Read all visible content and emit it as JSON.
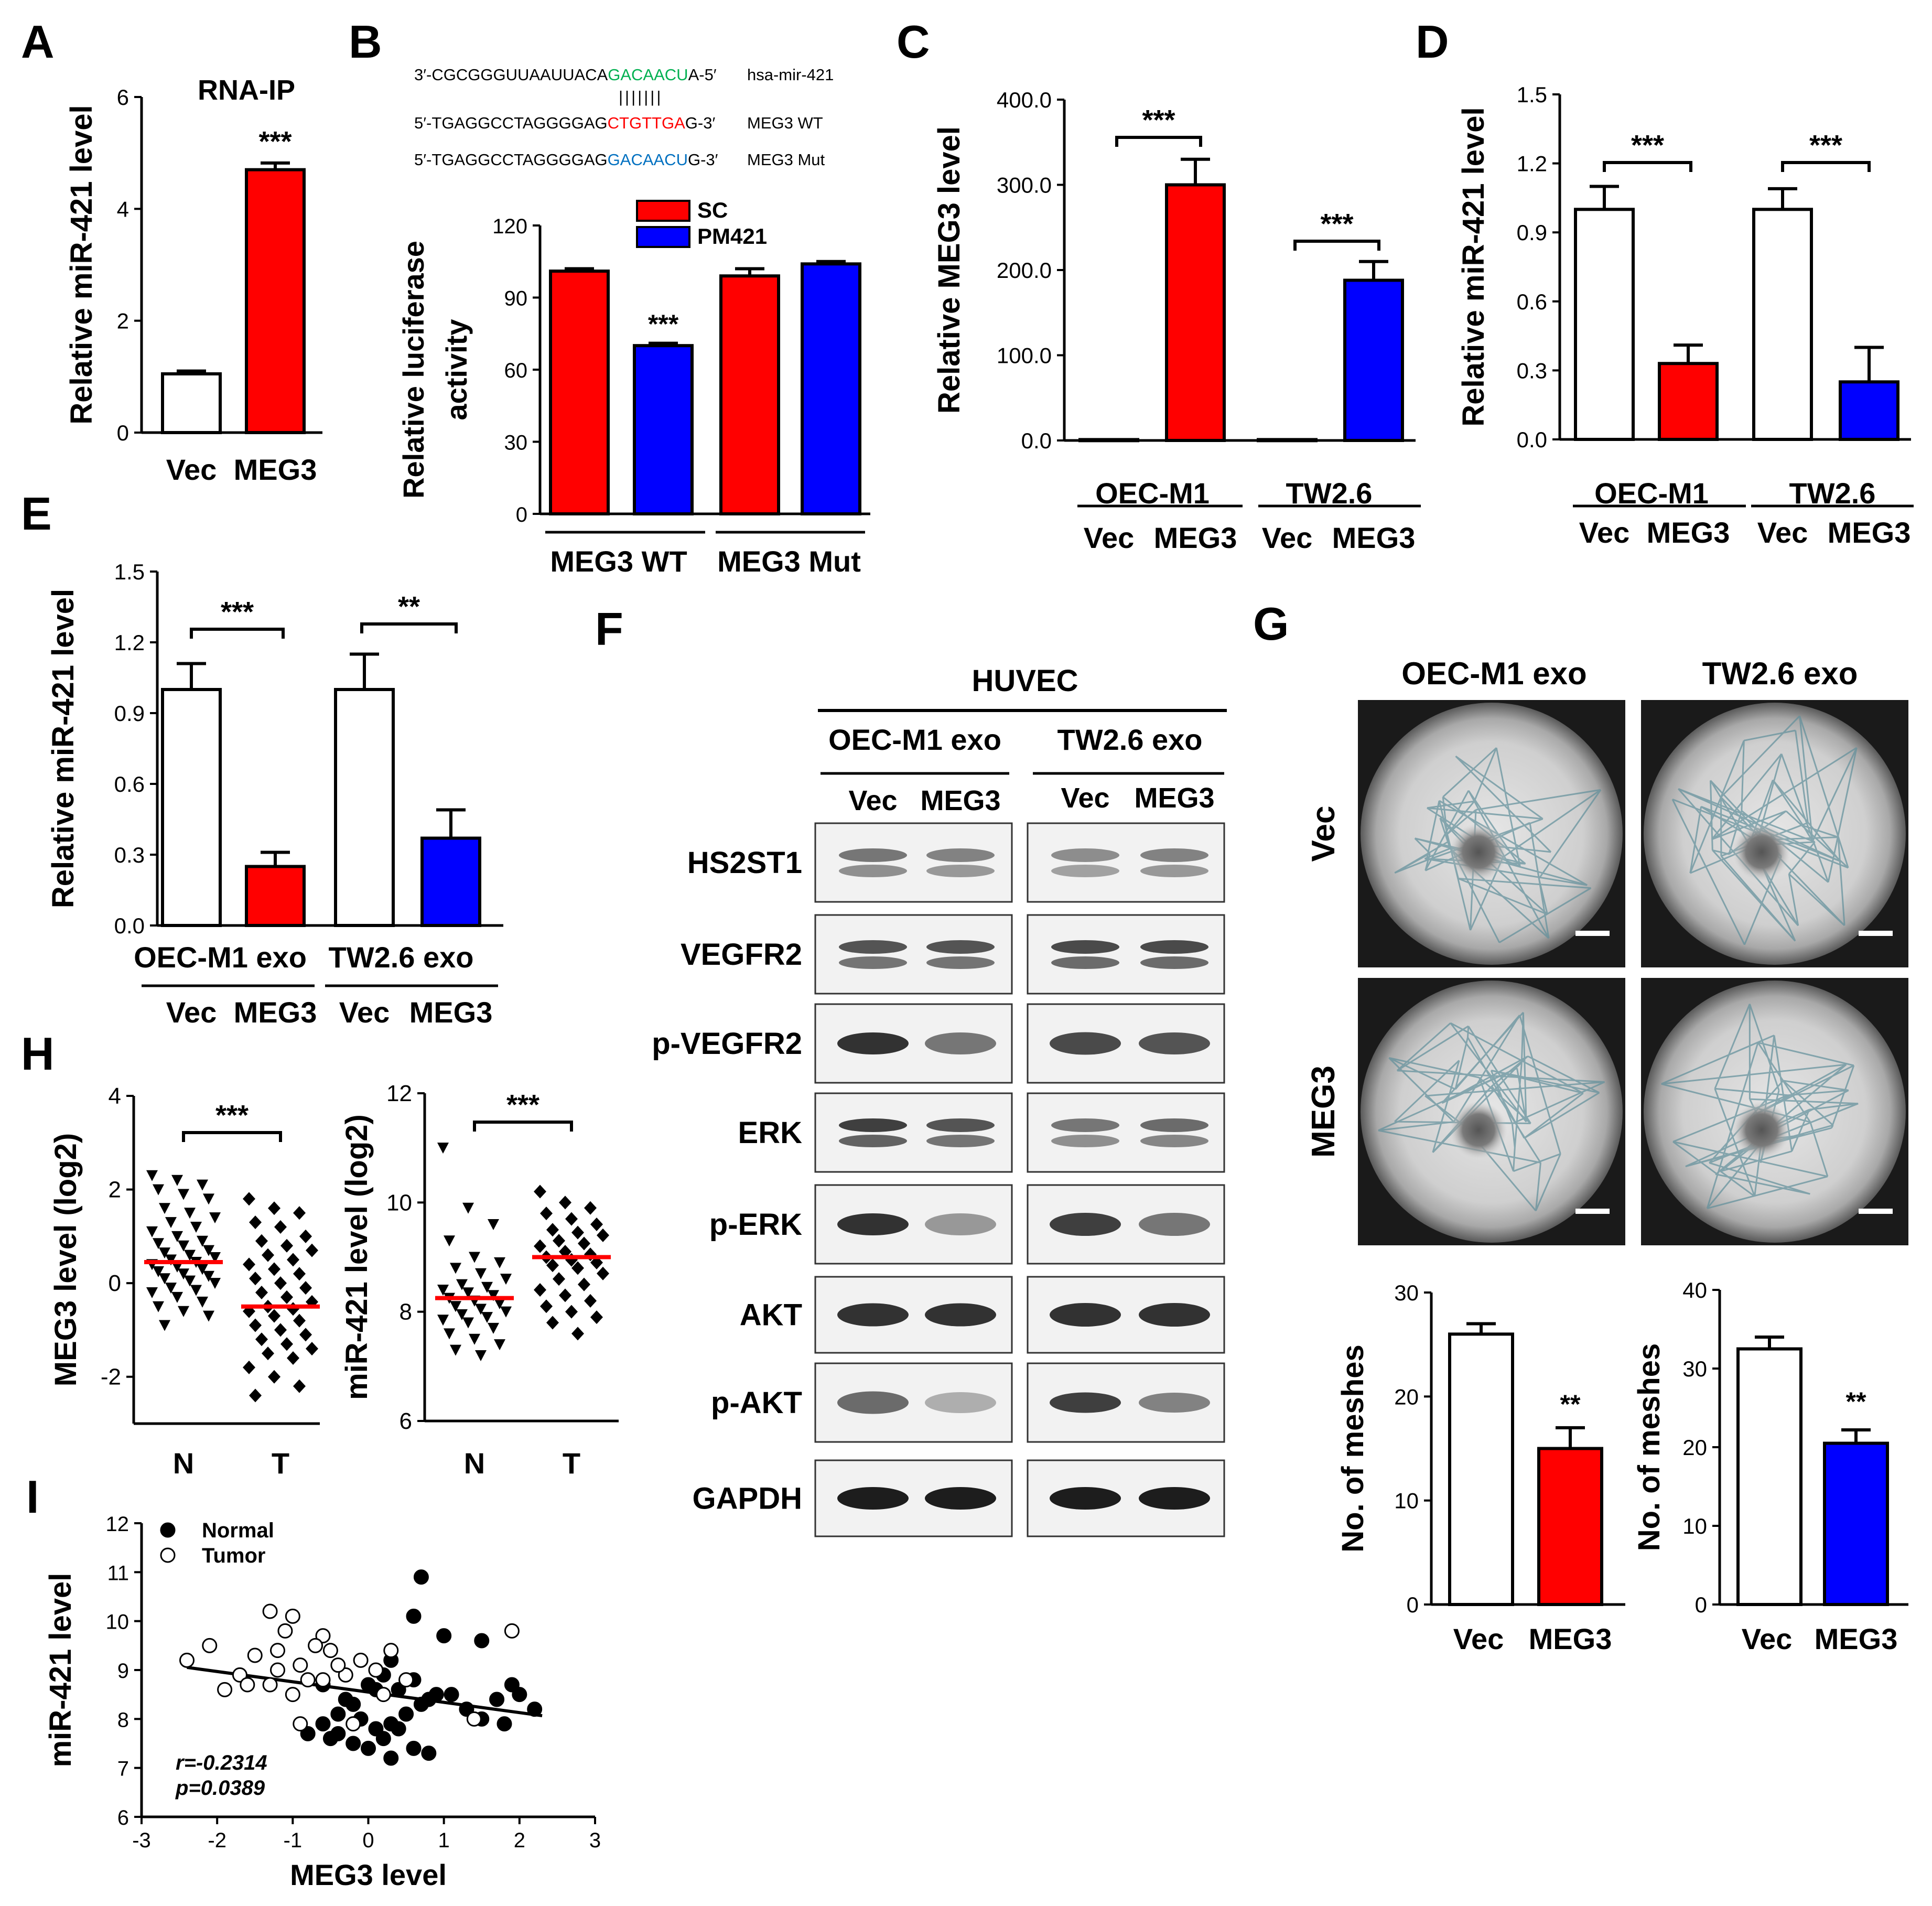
{
  "panel_letters": {
    "A": "A",
    "B": "B",
    "C": "C",
    "D": "D",
    "E": "E",
    "F": "F",
    "G": "G",
    "H": "H",
    "I": "I"
  },
  "colors": {
    "red": "#ff0000",
    "blue": "#0000ff",
    "green": "#00b050",
    "seq_red": "#ff0000",
    "seq_blue": "#0070c0",
    "black": "#000000",
    "white": "#ffffff"
  },
  "sequences": {
    "mir": {
      "prefix": "3′-CGCGGGUUAAUUACA",
      "highlight": "GACAACU",
      "suffix": "A-5′",
      "label": "hsa-mir-421"
    },
    "bars": "|||||||",
    "wt": {
      "prefix": "5′-TGAGGCCTAGGGGAG",
      "highlight": "CTGTTGA",
      "suffix": "G-3′",
      "label": "MEG3 WT"
    },
    "mut": {
      "prefix": "5′-TGAGGCCTAGGGGAG",
      "highlight": "GACAACU",
      "suffix": "G-3′",
      "label": "MEG3 Mut"
    }
  },
  "panel_F": {
    "cell": "HUVEC",
    "groups": [
      "OEC-M1 exo",
      "TW2.6 exo"
    ],
    "lanes": [
      "Vec",
      "MEG3",
      "Vec",
      "MEG3"
    ],
    "proteins": [
      "HS2ST1",
      "VEGFR2",
      "p-VEGFR2",
      "ERK",
      "p-ERK",
      "AKT",
      "p-AKT",
      "GAPDH"
    ]
  },
  "panel_G": {
    "col_labels": [
      "OEC-M1 exo",
      "TW2.6 exo"
    ],
    "row_labels": [
      "Vec",
      "MEG3"
    ]
  },
  "chart_data": [
    {
      "panel": "A",
      "type": "bar",
      "title": "RNA-IP",
      "categories": [
        "Vec",
        "MEG3"
      ],
      "values": [
        1.05,
        4.7
      ],
      "errors": [
        0.05,
        0.12
      ],
      "colors": [
        "white",
        "red"
      ],
      "ylabel": "Relative miR-421 level",
      "ylim": [
        0,
        6
      ],
      "yticks": [
        "0",
        "2",
        "4",
        "6"
      ],
      "significance": [
        {
          "over": 1,
          "text": "***"
        }
      ]
    },
    {
      "panel": "B",
      "type": "bar",
      "categories": [
        "MEG3 WT",
        "MEG3 Mut"
      ],
      "series": [
        {
          "name": "SC",
          "values": [
            101,
            99
          ],
          "errors": [
            1,
            3
          ],
          "color": "red"
        },
        {
          "name": "PM421",
          "values": [
            70,
            104
          ],
          "errors": [
            1,
            1
          ],
          "color": "blue"
        }
      ],
      "ylabel": "Relative luciferase activity",
      "ylim": [
        0,
        120
      ],
      "yticks": [
        "0",
        "30",
        "60",
        "90",
        "120"
      ],
      "significance": [
        {
          "over": "MEG3 WT / PM421",
          "text": "***"
        }
      ],
      "legend": "top"
    },
    {
      "panel": "C",
      "type": "bar",
      "groups": [
        "OEC-M1",
        "TW2.6"
      ],
      "categories": [
        "Vec",
        "MEG3",
        "Vec",
        "MEG3"
      ],
      "values": [
        1,
        300,
        1,
        188
      ],
      "errors": [
        0,
        30,
        0,
        22
      ],
      "colors": [
        "white",
        "red",
        "white",
        "blue"
      ],
      "ylabel": "Relative MEG3 level",
      "ylim": [
        0,
        400
      ],
      "yticks": [
        "0.0",
        "100.0",
        "200.0",
        "300.0",
        "400.0"
      ],
      "significance": [
        {
          "group": "OEC-M1",
          "text": "***"
        },
        {
          "group": "TW2.6",
          "text": "***"
        }
      ]
    },
    {
      "panel": "D",
      "type": "bar",
      "groups": [
        "OEC-M1",
        "TW2.6"
      ],
      "categories": [
        "Vec",
        "MEG3",
        "Vec",
        "MEG3"
      ],
      "values": [
        1.0,
        0.33,
        1.0,
        0.25
      ],
      "errors": [
        0.1,
        0.08,
        0.09,
        0.15
      ],
      "colors": [
        "white",
        "red",
        "white",
        "blue"
      ],
      "ylabel": "Relative miR-421 level",
      "ylim": [
        0,
        1.5
      ],
      "yticks": [
        "0.0",
        "0.3",
        "0.6",
        "0.9",
        "1.2",
        "1.5"
      ],
      "significance": [
        {
          "group": "OEC-M1",
          "text": "***"
        },
        {
          "group": "TW2.6",
          "text": "***"
        }
      ]
    },
    {
      "panel": "E",
      "type": "bar",
      "groups": [
        "OEC-M1 exo",
        "TW2.6 exo"
      ],
      "categories": [
        "Vec",
        "MEG3",
        "Vec",
        "MEG3"
      ],
      "values": [
        1.0,
        0.25,
        1.0,
        0.37
      ],
      "errors": [
        0.11,
        0.06,
        0.15,
        0.12
      ],
      "colors": [
        "white",
        "red",
        "white",
        "blue"
      ],
      "ylabel": "Relative miR-421 level",
      "ylim": [
        0,
        1.5
      ],
      "yticks": [
        "0.0",
        "0.3",
        "0.6",
        "0.9",
        "1.2",
        "1.5"
      ],
      "significance": [
        {
          "group": "OEC-M1 exo",
          "text": "***"
        },
        {
          "group": "TW2.6 exo",
          "text": "**"
        }
      ]
    },
    {
      "panel": "G1",
      "type": "bar",
      "categories": [
        "Vec",
        "MEG3"
      ],
      "values": [
        26,
        15
      ],
      "errors": [
        1,
        2
      ],
      "colors": [
        "white",
        "red"
      ],
      "ylabel": "No. of meshes",
      "ylim": [
        0,
        30
      ],
      "yticks": [
        "0",
        "10",
        "20",
        "30"
      ],
      "significance": [
        {
          "over": 1,
          "text": "**"
        }
      ]
    },
    {
      "panel": "G2",
      "type": "bar",
      "categories": [
        "Vec",
        "MEG3"
      ],
      "values": [
        32.5,
        20.5
      ],
      "errors": [
        1.5,
        1.7
      ],
      "colors": [
        "white",
        "blue"
      ],
      "ylabel": "No. of meshes",
      "ylim": [
        0,
        40
      ],
      "yticks": [
        "0",
        "10",
        "20",
        "30",
        "40"
      ],
      "significance": [
        {
          "over": 1,
          "text": "**"
        }
      ]
    },
    {
      "panel": "H1",
      "type": "scatter",
      "categories": [
        "N",
        "T"
      ],
      "ylabel": "MEG3 level (log2)",
      "ylim": [
        -3,
        4
      ],
      "yticks": [
        "-2",
        "0",
        "2",
        "4"
      ],
      "means": [
        0.45,
        -0.5
      ],
      "significance": "***",
      "N": [
        2.3,
        2.2,
        2.1,
        2.0,
        1.9,
        1.8,
        1.6,
        1.5,
        1.4,
        1.3,
        1.2,
        1.1,
        1.0,
        0.9,
        0.85,
        0.8,
        0.7,
        0.65,
        0.6,
        0.55,
        0.5,
        0.45,
        0.4,
        0.35,
        0.3,
        0.25,
        0.2,
        0.15,
        0.1,
        0.05,
        0.0,
        -0.1,
        -0.15,
        -0.2,
        -0.3,
        -0.4,
        -0.5,
        -0.6,
        -0.7,
        -0.9
      ],
      "T": [
        1.8,
        1.6,
        1.5,
        1.3,
        1.2,
        1.0,
        0.9,
        0.8,
        0.7,
        0.6,
        0.5,
        0.4,
        0.3,
        0.2,
        0.1,
        0.0,
        -0.1,
        -0.2,
        -0.3,
        -0.4,
        -0.5,
        -0.55,
        -0.6,
        -0.7,
        -0.8,
        -0.9,
        -1.0,
        -1.1,
        -1.2,
        -1.3,
        -1.4,
        -1.5,
        -1.6,
        -1.8,
        -2.0,
        -2.2,
        -2.4
      ]
    },
    {
      "panel": "H2",
      "type": "scatter",
      "categories": [
        "N",
        "T"
      ],
      "ylabel": "miR-421 level (log2)",
      "ylim": [
        6,
        12
      ],
      "yticks": [
        "6",
        "8",
        "10",
        "12"
      ],
      "means": [
        8.25,
        9.0
      ],
      "significance": "***",
      "N": [
        11.0,
        9.9,
        9.6,
        9.3,
        9.0,
        8.9,
        8.8,
        8.7,
        8.6,
        8.5,
        8.45,
        8.4,
        8.35,
        8.3,
        8.25,
        8.2,
        8.15,
        8.1,
        8.05,
        8.0,
        7.95,
        7.9,
        7.85,
        7.8,
        7.7,
        7.6,
        7.5,
        7.4,
        7.3,
        7.2
      ],
      "T": [
        10.2,
        10.0,
        9.9,
        9.8,
        9.7,
        9.6,
        9.5,
        9.45,
        9.4,
        9.3,
        9.25,
        9.2,
        9.1,
        9.05,
        9.0,
        8.95,
        8.9,
        8.85,
        8.8,
        8.7,
        8.6,
        8.5,
        8.4,
        8.3,
        8.2,
        8.1,
        8.0,
        7.9,
        7.8,
        7.6
      ]
    },
    {
      "panel": "I",
      "type": "scatter",
      "xlabel": "MEG3 level",
      "ylabel": "miR-421 level",
      "xlim": [
        -3,
        3
      ],
      "ylim": [
        6,
        12
      ],
      "xticks": [
        "-3",
        "-2",
        "-1",
        "0",
        "1",
        "2",
        "3"
      ],
      "yticks": [
        "6",
        "7",
        "8",
        "9",
        "10",
        "11",
        "12"
      ],
      "series": [
        {
          "name": "Normal",
          "points": [
            [
              0.7,
              10.9
            ],
            [
              0.6,
              10.1
            ],
            [
              1.0,
              9.7
            ],
            [
              1.5,
              9.6
            ],
            [
              0.3,
              9.2
            ],
            [
              0.1,
              8.6
            ],
            [
              -0.2,
              8.3
            ],
            [
              -0.4,
              8.1
            ],
            [
              -0.6,
              7.9
            ],
            [
              -0.8,
              7.7
            ],
            [
              -0.5,
              7.6
            ],
            [
              -0.2,
              7.5
            ],
            [
              0.0,
              7.4
            ],
            [
              0.2,
              7.6
            ],
            [
              0.4,
              7.8
            ],
            [
              0.5,
              8.1
            ],
            [
              0.7,
              8.3
            ],
            [
              0.9,
              8.5
            ],
            [
              1.1,
              8.5
            ],
            [
              1.3,
              8.2
            ],
            [
              1.5,
              8.0
            ],
            [
              1.7,
              8.4
            ],
            [
              1.9,
              8.7
            ],
            [
              2.0,
              8.5
            ],
            [
              2.2,
              8.2
            ],
            [
              1.8,
              7.9
            ],
            [
              0.8,
              7.3
            ],
            [
              0.6,
              7.4
            ],
            [
              0.3,
              7.9
            ],
            [
              -0.1,
              8.0
            ],
            [
              -0.3,
              8.4
            ],
            [
              -0.6,
              8.7
            ],
            [
              0.0,
              8.7
            ],
            [
              0.2,
              8.9
            ],
            [
              0.4,
              8.6
            ],
            [
              0.6,
              8.8
            ],
            [
              0.8,
              8.4
            ],
            [
              -0.4,
              7.7
            ],
            [
              0.3,
              7.2
            ],
            [
              0.1,
              7.8
            ]
          ]
        },
        {
          "name": "Tumor",
          "points": [
            [
              -2.4,
              9.2
            ],
            [
              -2.1,
              9.5
            ],
            [
              -1.3,
              10.2
            ],
            [
              -1.0,
              10.1
            ],
            [
              -0.6,
              9.7
            ],
            [
              -0.5,
              9.4
            ],
            [
              -1.1,
              9.8
            ],
            [
              -1.5,
              9.3
            ],
            [
              -1.7,
              8.9
            ],
            [
              -1.9,
              8.6
            ],
            [
              -1.2,
              9.0
            ],
            [
              -0.9,
              9.1
            ],
            [
              -0.8,
              8.8
            ],
            [
              -0.6,
              8.8
            ],
            [
              -0.3,
              8.9
            ],
            [
              -0.1,
              9.2
            ],
            [
              0.1,
              9.0
            ],
            [
              0.5,
              8.8
            ],
            [
              0.3,
              9.4
            ],
            [
              -1.0,
              8.5
            ],
            [
              -1.3,
              8.7
            ],
            [
              -1.6,
              8.7
            ],
            [
              -0.9,
              7.9
            ],
            [
              -0.2,
              7.9
            ],
            [
              1.4,
              8.0
            ],
            [
              1.9,
              9.8
            ],
            [
              -0.7,
              9.5
            ],
            [
              -1.2,
              9.4
            ],
            [
              -0.4,
              9.1
            ],
            [
              0.2,
              8.5
            ]
          ]
        }
      ],
      "fit": {
        "slope": -0.21,
        "intercept": 8.55
      },
      "legend": "top-left",
      "stats": [
        "r=-0.2314",
        "p=0.0389"
      ]
    }
  ]
}
